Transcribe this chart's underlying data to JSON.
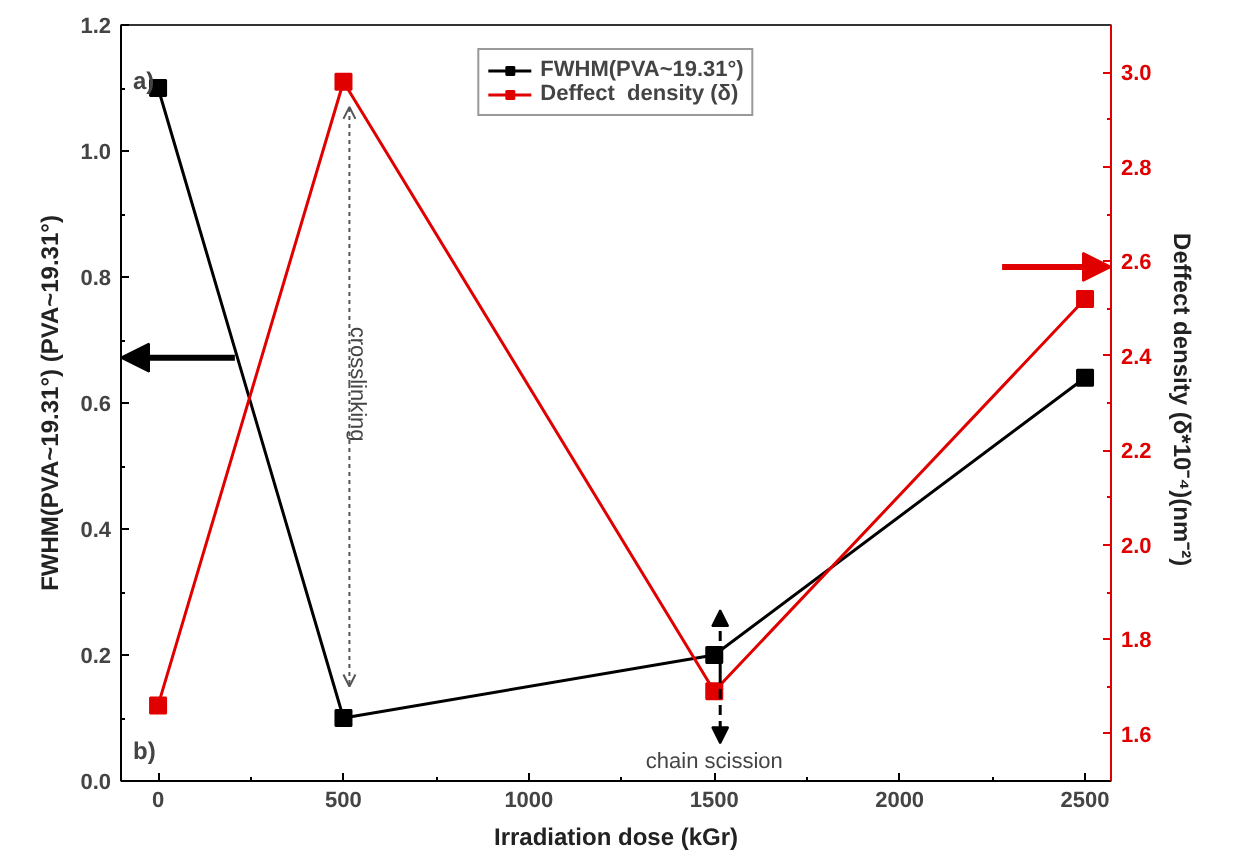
{
  "chart_data": {
    "type": "line",
    "xlabel": "Irradiation dose (kGr)",
    "ylabel": "FWHM(PVA~19.31°) (PVA~19.31°)",
    "y2label": "Deffect  density (δ*10⁻⁴)(nm⁻²)",
    "x": [
      0,
      500,
      1500,
      2500
    ],
    "series": [
      {
        "name": "FWHM(PVA~19.31°)",
        "color": "#000000",
        "values": [
          1.1,
          0.1,
          0.2,
          0.64
        ]
      },
      {
        "name": "Deffect  density (δ)",
        "color": "#e00000",
        "values": [
          1.66,
          2.98,
          1.69,
          2.52
        ],
        "axis": "y2"
      }
    ],
    "xlim": [
      -100,
      2570
    ],
    "xticks": [
      0,
      500,
      1000,
      1500,
      2000,
      2500
    ],
    "ylim": [
      0,
      1.2
    ],
    "yticks": [
      {
        "value": 0,
        "label": "0.0"
      },
      0.2,
      0.4,
      0.6,
      0.8,
      {
        "value": 1,
        "label": "1.0"
      },
      1.2
    ],
    "y2lim": [
      1.5,
      3.1
    ],
    "y2ticks": [
      1.6,
      1.8,
      {
        "value": 2,
        "label": "2.0"
      },
      2.2,
      2.4,
      2.6,
      2.8,
      {
        "value": 3,
        "label": "3.0"
      }
    ],
    "annotations": [
      "a)",
      "b)",
      {
        "text": "crosslinking",
        "x": 500,
        "y": 0.15
      },
      "chain scission"
    ],
    "marker": "square",
    "legend": "top",
    "grid": false
  }
}
